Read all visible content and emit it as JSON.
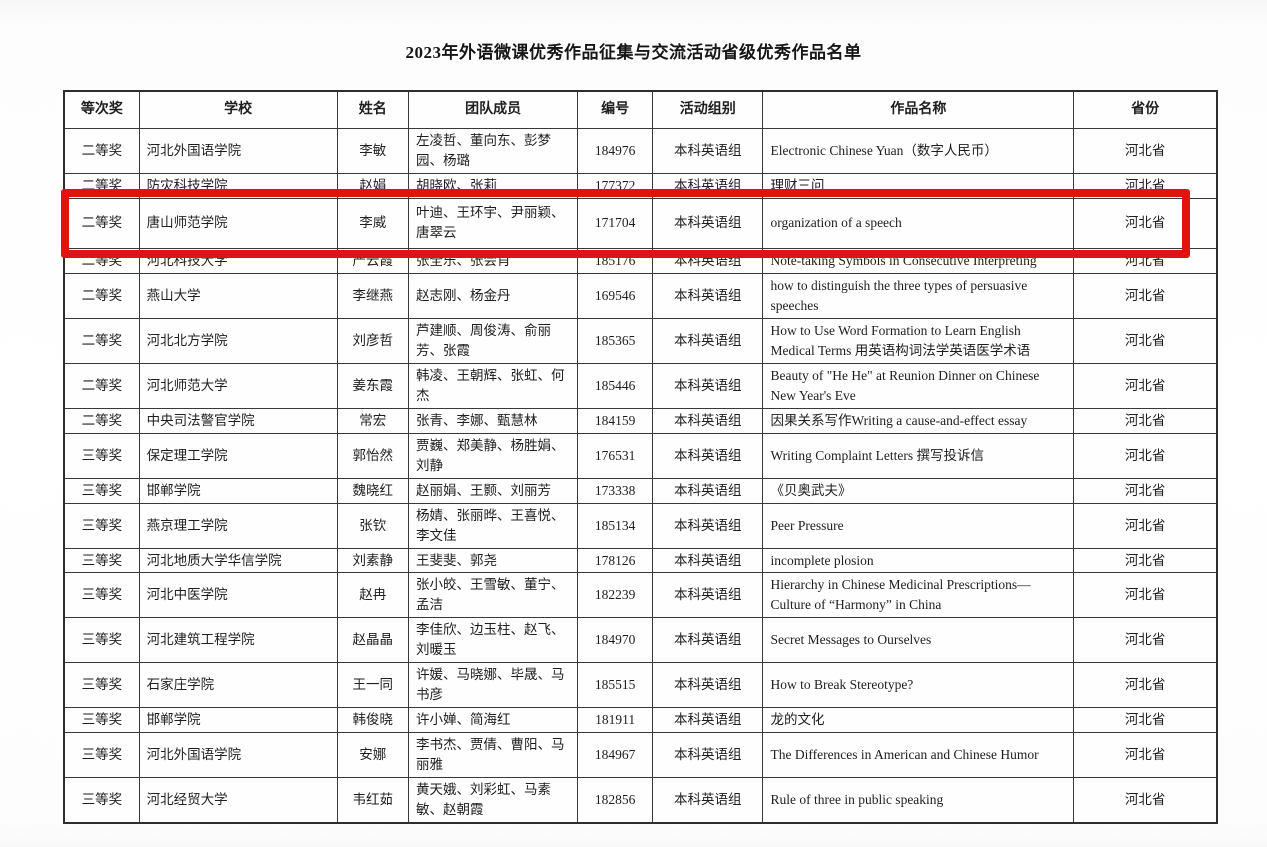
{
  "title": "2023年外语微课优秀作品征集与交流活动省级优秀作品名单",
  "table": {
    "headers": [
      "等次奖",
      "学校",
      "姓名",
      "团队成员",
      "编号",
      "活动组别",
      "作品名称",
      "省份"
    ],
    "highlight": {
      "row_index": 2,
      "color": "#e01212"
    },
    "rows": [
      {
        "award": "二等奖",
        "school": "河北外国语学院",
        "name": "李敏",
        "team": "左凌哲、董向东、彭梦园、杨璐",
        "id": "184976",
        "group": "本科英语组",
        "work": "Electronic Chinese Yuan（数字人民币）",
        "province": "河北省"
      },
      {
        "award": "二等奖",
        "school": "防灾科技学院",
        "name": "赵娟",
        "team": "胡晓欧、张莉",
        "id": "177372",
        "group": "本科英语组",
        "work": "理财三问",
        "province": "河北省",
        "compact": true
      },
      {
        "award": "二等奖",
        "school": "唐山师范学院",
        "name": "李威",
        "team": "叶迪、王环宇、尹丽颖、唐翠云",
        "id": "171704",
        "group": "本科英语组",
        "work": "organization of a speech",
        "province": "河北省"
      },
      {
        "award": "二等奖",
        "school": "河北科技大学",
        "name": "严云霞",
        "team": "张全乐、张会肖",
        "id": "185176",
        "group": "本科英语组",
        "work": "Note-taking Symbols in Consecutive Interpreting",
        "province": "河北省",
        "compact": true
      },
      {
        "award": "二等奖",
        "school": "燕山大学",
        "name": "李继燕",
        "team": "赵志刚、杨金丹",
        "id": "169546",
        "group": "本科英语组",
        "work": "how to distinguish the three types of persuasive speeches",
        "province": "河北省"
      },
      {
        "award": "二等奖",
        "school": "河北北方学院",
        "name": "刘彦哲",
        "team": "芦建顺、周俊涛、俞丽芳、张霞",
        "id": "185365",
        "group": "本科英语组",
        "work": "How to Use Word Formation to Learn English Medical Terms 用英语构词法学英语医学术语",
        "province": "河北省"
      },
      {
        "award": "二等奖",
        "school": "河北师范大学",
        "name": "姜东霞",
        "team": "韩凌、王朝辉、张虹、何杰",
        "id": "185446",
        "group": "本科英语组",
        "work": "Beauty of \"He He\" at Reunion Dinner on Chinese New Year's Eve",
        "province": "河北省"
      },
      {
        "award": "二等奖",
        "school": "中央司法警官学院",
        "name": "常宏",
        "team": "张青、李娜、甄慧林",
        "id": "184159",
        "group": "本科英语组",
        "work": "因果关系写作Writing a cause-and-effect essay",
        "province": "河北省"
      },
      {
        "award": "三等奖",
        "school": "保定理工学院",
        "name": "郭怡然",
        "team": "贾巍、郑美静、杨胜娟、刘静",
        "id": "176531",
        "group": "本科英语组",
        "work": "Writing Complaint Letters 撰写投诉信",
        "province": "河北省"
      },
      {
        "award": "三等奖",
        "school": "邯郸学院",
        "name": "魏晓红",
        "team": "赵丽娟、王颢、刘丽芳",
        "id": "173338",
        "group": "本科英语组",
        "work": "《贝奥武夫》",
        "province": "河北省"
      },
      {
        "award": "三等奖",
        "school": "燕京理工学院",
        "name": "张钦",
        "team": "杨婧、张丽晔、王喜悦、李文佳",
        "id": "185134",
        "group": "本科英语组",
        "work": "Peer Pressure",
        "province": "河北省"
      },
      {
        "award": "三等奖",
        "school": "河北地质大学华信学院",
        "name": "刘素静",
        "team": "王斐斐、郭尧",
        "id": "178126",
        "group": "本科英语组",
        "work": "incomplete plosion",
        "province": "河北省"
      },
      {
        "award": "三等奖",
        "school": "河北中医学院",
        "name": "赵冉",
        "team": "张小皎、王雪敏、董宁、孟洁",
        "id": "182239",
        "group": "本科英语组",
        "work": "Hierarchy in Chinese Medicinal Prescriptions—Culture of “Harmony” in China",
        "province": "河北省"
      },
      {
        "award": "三等奖",
        "school": "河北建筑工程学院",
        "name": "赵晶晶",
        "team": "李佳欣、边玉柱、赵飞、刘暖玉",
        "id": "184970",
        "group": "本科英语组",
        "work": "Secret Messages to Ourselves",
        "province": "河北省"
      },
      {
        "award": "三等奖",
        "school": "石家庄学院",
        "name": "王一同",
        "team": "许媛、马晓娜、毕晟、马书彦",
        "id": "185515",
        "group": "本科英语组",
        "work": "How to Break Stereotype?",
        "province": "河北省"
      },
      {
        "award": "三等奖",
        "school": "邯郸学院",
        "name": "韩俊晓",
        "team": "许小婵、简海红",
        "id": "181911",
        "group": "本科英语组",
        "work": "龙的文化",
        "province": "河北省"
      },
      {
        "award": "三等奖",
        "school": "河北外国语学院",
        "name": "安娜",
        "team": "李书杰、贾倩、曹阳、马丽雅",
        "id": "184967",
        "group": "本科英语组",
        "work": "The Differences in American and Chinese Humor",
        "province": "河北省"
      },
      {
        "award": "三等奖",
        "school": "河北经贸大学",
        "name": "韦红茹",
        "team": "黄天娥、刘彩虹、马素敏、赵朝霞",
        "id": "182856",
        "group": "本科英语组",
        "work": "Rule of three in public speaking",
        "province": "河北省"
      }
    ]
  }
}
